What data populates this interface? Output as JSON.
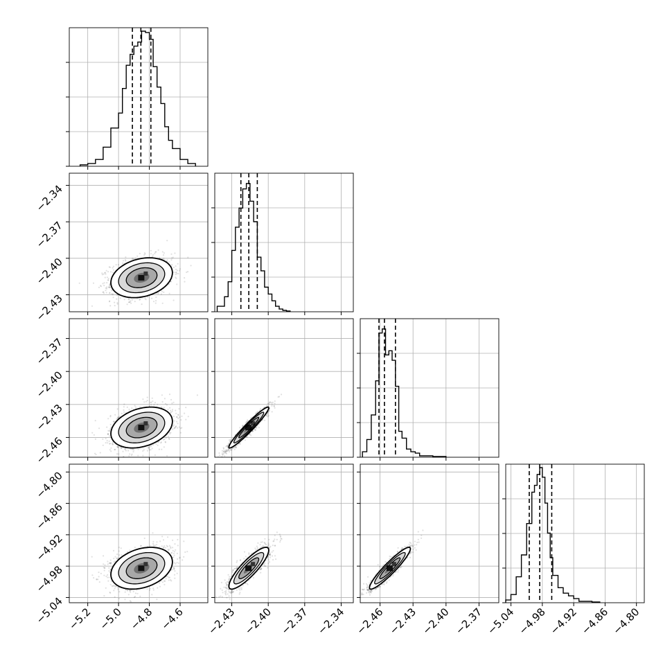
{
  "chart_data": {
    "type": "corner",
    "grid": true,
    "variables": [
      {
        "range": [
          -5.32,
          -4.42
        ],
        "ticks": [
          -5.2,
          -5.0,
          -4.8,
          -4.6
        ],
        "tick_labels": [
          "−5.2",
          "−5.0",
          "−4.8",
          "−4.6"
        ]
      },
      {
        "range": [
          -2.444,
          -2.33
        ],
        "ticks": [
          -2.43,
          -2.4,
          -2.37,
          -2.34
        ],
        "tick_labels": [
          "−2.43",
          "−2.40",
          "−2.37",
          "−2.34"
        ]
      },
      {
        "range": [
          -2.478,
          -2.352
        ],
        "ticks": [
          -2.46,
          -2.43,
          -2.4,
          -2.37
        ],
        "tick_labels": [
          "−2.46",
          "−2.43",
          "−2.40",
          "−2.37"
        ]
      },
      {
        "range": [
          -5.05,
          -4.785
        ],
        "ticks": [
          -5.04,
          -4.98,
          -4.92,
          -4.86,
          -4.8
        ],
        "tick_labels": [
          "−5.04",
          "−4.98",
          "−4.92",
          "−4.86",
          "−4.80"
        ]
      }
    ],
    "histograms": [
      {
        "quantiles": [
          -4.91,
          -4.855,
          -4.79
        ],
        "edges": [
          -5.25,
          -5.2,
          -5.15,
          -5.1,
          -5.05,
          -5.0,
          -4.975,
          -4.95,
          -4.925,
          -4.9,
          -4.875,
          -4.85,
          -4.825,
          -4.8,
          -4.775,
          -4.75,
          -4.725,
          -4.7,
          -4.675,
          -4.65,
          -4.6,
          -4.55,
          -4.5
        ],
        "counts": [
          0.01,
          0.02,
          0.05,
          0.14,
          0.28,
          0.39,
          0.57,
          0.74,
          0.82,
          0.88,
          0.91,
          0.99,
          0.98,
          0.93,
          0.73,
          0.58,
          0.46,
          0.29,
          0.19,
          0.13,
          0.05,
          0.02
        ]
      },
      {
        "quantiles": [
          -2.4225,
          -2.416,
          -2.409
        ],
        "edges": [
          -2.442,
          -2.436,
          -2.433,
          -2.43,
          -2.427,
          -2.424,
          -2.421,
          -2.418,
          -2.415,
          -2.412,
          -2.409,
          -2.406,
          -2.403,
          -2.4,
          -2.397,
          -2.394,
          -2.391,
          -2.388,
          -2.385,
          -2.382
        ],
        "counts": [
          0.04,
          0.11,
          0.22,
          0.45,
          0.62,
          0.76,
          0.9,
          0.94,
          0.81,
          0.66,
          0.4,
          0.3,
          0.18,
          0.13,
          0.08,
          0.04,
          0.02,
          0.01,
          0.005
        ]
      },
      {
        "quantiles": [
          -2.461,
          -2.456,
          -2.446
        ],
        "edges": [
          -2.476,
          -2.472,
          -2.468,
          -2.464,
          -2.461,
          -2.458,
          -2.455,
          -2.452,
          -2.449,
          -2.446,
          -2.443,
          -2.44,
          -2.436,
          -2.432,
          -2.428,
          -2.424,
          -2.418,
          -2.412,
          -2.4
        ],
        "counts": [
          0.04,
          0.13,
          0.31,
          0.56,
          0.91,
          0.94,
          0.75,
          0.78,
          0.71,
          0.52,
          0.19,
          0.14,
          0.06,
          0.04,
          0.03,
          0.01,
          0.01,
          0.005
        ]
      },
      {
        "quantiles": [
          -5.005,
          -4.985,
          -4.962
        ],
        "edges": [
          -5.05,
          -5.04,
          -5.03,
          -5.02,
          -5.01,
          -5.0,
          -4.995,
          -4.99,
          -4.985,
          -4.98,
          -4.975,
          -4.97,
          -4.965,
          -4.96,
          -4.95,
          -4.94,
          -4.93,
          -4.92,
          -4.91,
          -4.9,
          -4.885,
          -4.87
        ],
        "counts": [
          0.02,
          0.06,
          0.19,
          0.35,
          0.58,
          0.81,
          0.86,
          0.94,
          0.99,
          0.92,
          0.73,
          0.51,
          0.33,
          0.2,
          0.11,
          0.07,
          0.05,
          0.03,
          0.01,
          0.01,
          0.005
        ]
      }
    ],
    "pairs": [
      {
        "row": 1,
        "col": 0,
        "mean": [
          -4.85,
          -2.416
        ],
        "sd": [
          0.1,
          0.0082
        ],
        "rho": 0.25
      },
      {
        "row": 2,
        "col": 0,
        "mean": [
          -4.85,
          -2.451
        ],
        "sd": [
          0.1,
          0.0093
        ],
        "rho": 0.3
      },
      {
        "row": 2,
        "col": 1,
        "mean": [
          -2.416,
          -2.451
        ],
        "sd": [
          0.0082,
          0.0093
        ],
        "rho": 0.96
      },
      {
        "row": 3,
        "col": 0,
        "mean": [
          -4.85,
          -4.984
        ],
        "sd": [
          0.1,
          0.02
        ],
        "rho": 0.3
      },
      {
        "row": 3,
        "col": 1,
        "mean": [
          -2.416,
          -4.984
        ],
        "sd": [
          0.0082,
          0.02
        ],
        "rho": 0.86
      },
      {
        "row": 3,
        "col": 2,
        "mean": [
          -2.451,
          -4.984
        ],
        "sd": [
          0.0093,
          0.02
        ],
        "rho": 0.93
      }
    ]
  }
}
